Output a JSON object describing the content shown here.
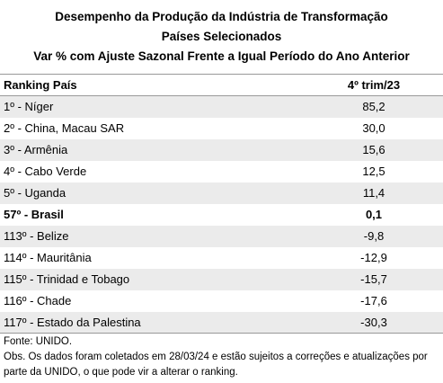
{
  "header": {
    "title": "Desempenho da Produção da Indústria de Transformação",
    "subtitle": "Países Selecionados",
    "subtitle2": "Var % com Ajuste Sazonal Frente a Igual Período do Ano Anterior"
  },
  "table": {
    "columns": [
      "Ranking País",
      "4º trim/23"
    ],
    "rows": [
      {
        "cells": [
          "1º - Níger",
          "85,2"
        ]
      },
      {
        "cells": [
          "2º - China, Macau SAR",
          "30,0"
        ]
      },
      {
        "cells": [
          "3º - Armênia",
          "15,6"
        ]
      },
      {
        "cells": [
          "4º - Cabo Verde",
          "12,5"
        ]
      },
      {
        "cells": [
          "5º - Uganda",
          "11,4"
        ]
      },
      {
        "cells": [
          "57º - Brasil",
          "0,1"
        ],
        "bold": true
      },
      {
        "cells": [
          "113º - Belize",
          "-9,8"
        ]
      },
      {
        "cells": [
          "114º - Mauritânia",
          "-12,9"
        ]
      },
      {
        "cells": [
          "115º - Trinidad e Tobago",
          "-15,7"
        ]
      },
      {
        "cells": [
          "116º - Chade",
          "-17,6"
        ]
      },
      {
        "cells": [
          "117º - Estado da Palestina",
          "-30,3"
        ]
      }
    ]
  },
  "footer": {
    "source": "Fonte: UNIDO.",
    "note": "Obs. Os dados foram coletados em 28/03/24 e estão sujeitos a correções e atualizações por parte da UNIDO, o que pode vir a alterar o ranking."
  }
}
